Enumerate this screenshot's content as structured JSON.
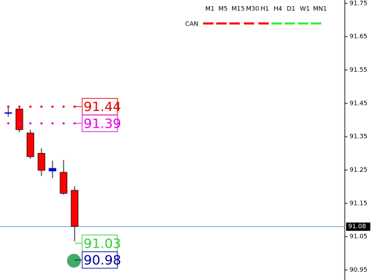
{
  "chart_data": {
    "type": "candlestick",
    "open": [
      91.422,
      91.433,
      91.361,
      91.3,
      91.247,
      91.243,
      91.189
    ],
    "high": [
      91.44,
      91.44,
      91.371,
      91.315,
      91.278,
      91.28,
      91.201
    ],
    "low": [
      91.41,
      91.363,
      91.284,
      91.232,
      91.226,
      91.176,
      91.036
    ],
    "close": [
      91.422,
      91.371,
      91.29,
      91.249,
      91.255,
      91.18,
      91.081
    ],
    "up_color": "#0000cc",
    "down_color": "#ff0000",
    "ylim": [
      90.92,
      91.76
    ],
    "yticks": [
      91.75,
      91.65,
      91.55,
      91.45,
      91.35,
      91.25,
      91.15,
      91.05,
      90.95
    ],
    "current_price": 91.08,
    "levels": [
      {
        "value": 91.44,
        "color": "#e00000",
        "dots": true
      },
      {
        "value": 91.39,
        "color": "#e000e0",
        "dots": true
      },
      {
        "value": 91.03,
        "color": "#33cc33",
        "dots": false
      },
      {
        "value": 90.98,
        "color": "#000099",
        "dots": false
      }
    ],
    "symbol": "CAN",
    "timeframes": [
      {
        "label": "M1",
        "color": "#ff0000"
      },
      {
        "label": "M5",
        "color": "#ff0000"
      },
      {
        "label": "M15",
        "color": "#ff0000"
      },
      {
        "label": "M30",
        "color": "#ff0000"
      },
      {
        "label": "H1",
        "color": "#ff0000"
      },
      {
        "label": "H4",
        "color": "#33ee33"
      },
      {
        "label": "D1",
        "color": "#33ee33"
      },
      {
        "label": "W1",
        "color": "#33ee33"
      },
      {
        "label": "MN1",
        "color": "#33ee33"
      }
    ]
  }
}
